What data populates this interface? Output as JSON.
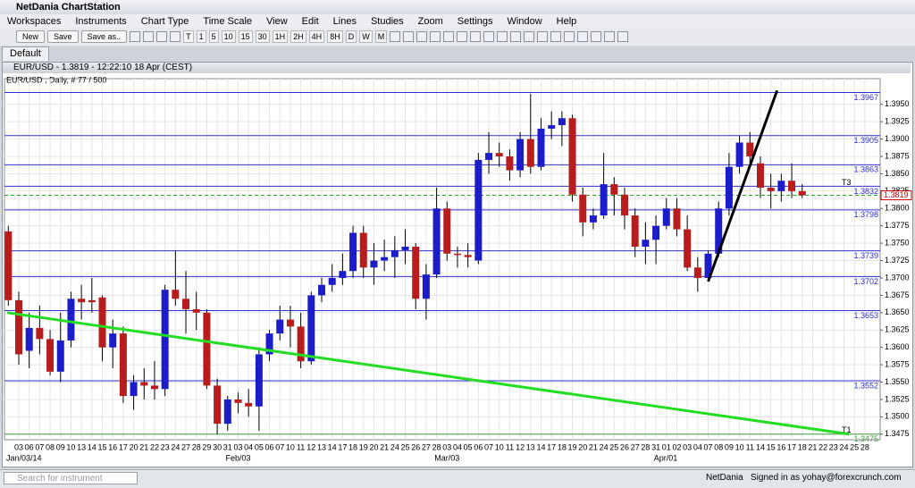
{
  "window": {
    "title": "NetDania ChartStation"
  },
  "menu": [
    "Workspaces",
    "Instruments",
    "Chart Type",
    "Time Scale",
    "View",
    "Edit",
    "Lines",
    "Studies",
    "Zoom",
    "Settings",
    "Window",
    "Help"
  ],
  "toolbar": {
    "buttons": [
      "New",
      "Save",
      "Save as.."
    ],
    "time_scale": [
      "T",
      "1",
      "5",
      "10",
      "15",
      "30",
      "1H",
      "2H",
      "4H",
      "8H",
      "D",
      "W",
      "M"
    ]
  },
  "tabs": [
    "Default"
  ],
  "chart_window": {
    "title": "EUR/USD - 1.3819 - 12:22:10  18 Apr (CEST)"
  },
  "chart_data": {
    "type": "candlestick",
    "legend": "EUR/USD , Daily, # 77 / 500",
    "up_color": "#1c1cc8",
    "down_color": "#b81c1c",
    "candles": [
      [
        1.3767,
        1.3775,
        1.366,
        1.3668
      ],
      [
        1.3668,
        1.368,
        1.3575,
        1.359
      ],
      [
        1.3595,
        1.365,
        1.357,
        1.3628
      ],
      [
        1.3628,
        1.366,
        1.359,
        1.3612
      ],
      [
        1.3612,
        1.3625,
        1.356,
        1.3565
      ],
      [
        1.3565,
        1.365,
        1.355,
        1.361
      ],
      [
        1.361,
        1.368,
        1.36,
        1.367
      ],
      [
        1.367,
        1.369,
        1.364,
        1.3665
      ],
      [
        1.3668,
        1.37,
        1.365,
        1.3665
      ],
      [
        1.3672,
        1.3675,
        1.358,
        1.36
      ],
      [
        1.36,
        1.364,
        1.357,
        1.362
      ],
      [
        1.362,
        1.363,
        1.352,
        1.353
      ],
      [
        1.353,
        1.356,
        1.351,
        1.355
      ],
      [
        1.355,
        1.357,
        1.3525,
        1.3545
      ],
      [
        1.3545,
        1.358,
        1.3525,
        1.354
      ],
      [
        1.354,
        1.369,
        1.353,
        1.3683
      ],
      [
        1.3683,
        1.374,
        1.366,
        1.367
      ],
      [
        1.367,
        1.371,
        1.362,
        1.3655
      ],
      [
        1.3655,
        1.368,
        1.3625,
        1.365
      ],
      [
        1.365,
        1.3655,
        1.354,
        1.3545
      ],
      [
        1.3545,
        1.3555,
        1.3475,
        1.349
      ],
      [
        1.349,
        1.353,
        1.348,
        1.3525
      ],
      [
        1.3525,
        1.3535,
        1.3505,
        1.352
      ],
      [
        1.352,
        1.354,
        1.35,
        1.3515
      ],
      [
        1.3515,
        1.36,
        1.348,
        1.359
      ],
      [
        1.359,
        1.3625,
        1.358,
        1.362
      ],
      [
        1.362,
        1.366,
        1.361,
        1.364
      ],
      [
        1.364,
        1.366,
        1.36,
        1.363
      ],
      [
        1.363,
        1.365,
        1.357,
        1.358
      ],
      [
        1.358,
        1.368,
        1.3575,
        1.3675
      ],
      [
        1.3675,
        1.37,
        1.3665,
        1.369
      ],
      [
        1.369,
        1.372,
        1.368,
        1.37
      ],
      [
        1.37,
        1.3735,
        1.369,
        1.371
      ],
      [
        1.371,
        1.3775,
        1.37,
        1.3765
      ],
      [
        1.3765,
        1.3775,
        1.37,
        1.3715
      ],
      [
        1.3715,
        1.375,
        1.369,
        1.3725
      ],
      [
        1.3725,
        1.3755,
        1.371,
        1.373
      ],
      [
        1.373,
        1.376,
        1.37,
        1.374
      ],
      [
        1.374,
        1.377,
        1.372,
        1.3745
      ],
      [
        1.3745,
        1.375,
        1.3655,
        1.367
      ],
      [
        1.367,
        1.372,
        1.364,
        1.3705
      ],
      [
        1.3705,
        1.383,
        1.37,
        1.38
      ],
      [
        1.38,
        1.381,
        1.3725,
        1.3735
      ],
      [
        1.3735,
        1.3745,
        1.3715,
        1.3733
      ],
      [
        1.3733,
        1.375,
        1.3715,
        1.373
      ],
      [
        1.3725,
        1.388,
        1.372,
        1.387
      ],
      [
        1.387,
        1.391,
        1.385,
        1.388
      ],
      [
        1.388,
        1.3895,
        1.386,
        1.3875
      ],
      [
        1.3875,
        1.3885,
        1.384,
        1.3855
      ],
      [
        1.3855,
        1.391,
        1.3845,
        1.39
      ],
      [
        1.39,
        1.3965,
        1.385,
        1.386
      ],
      [
        1.386,
        1.393,
        1.3855,
        1.3915
      ],
      [
        1.3915,
        1.394,
        1.39,
        1.392
      ],
      [
        1.392,
        1.394,
        1.389,
        1.393
      ],
      [
        1.393,
        1.3935,
        1.381,
        1.382
      ],
      [
        1.382,
        1.383,
        1.376,
        1.378
      ],
      [
        1.378,
        1.38,
        1.377,
        1.379
      ],
      [
        1.379,
        1.388,
        1.3785,
        1.3835
      ],
      [
        1.3835,
        1.3845,
        1.379,
        1.382
      ],
      [
        1.382,
        1.383,
        1.377,
        1.379
      ],
      [
        1.379,
        1.38,
        1.373,
        1.3745
      ],
      [
        1.3745,
        1.378,
        1.372,
        1.3755
      ],
      [
        1.3755,
        1.379,
        1.372,
        1.3775
      ],
      [
        1.3775,
        1.3815,
        1.377,
        1.38
      ],
      [
        1.38,
        1.3815,
        1.376,
        1.377
      ],
      [
        1.377,
        1.379,
        1.371,
        1.3715
      ],
      [
        1.3715,
        1.373,
        1.368,
        1.37
      ],
      [
        1.37,
        1.374,
        1.3695,
        1.3735
      ],
      [
        1.3735,
        1.381,
        1.373,
        1.38
      ],
      [
        1.38,
        1.388,
        1.379,
        1.386
      ],
      [
        1.386,
        1.3905,
        1.385,
        1.3895
      ],
      [
        1.3895,
        1.391,
        1.386,
        1.3875
      ],
      [
        1.3865,
        1.3875,
        1.3815,
        1.383
      ],
      [
        1.383,
        1.385,
        1.38,
        1.3825
      ],
      [
        1.3825,
        1.385,
        1.381,
        1.384
      ],
      [
        1.384,
        1.3865,
        1.3815,
        1.3825
      ],
      [
        1.3825,
        1.3835,
        1.3815,
        1.3819
      ]
    ],
    "categories": [
      "03",
      "06",
      "07",
      "08",
      "09",
      "10",
      "13",
      "14",
      "15",
      "16",
      "17",
      "20",
      "21",
      "22",
      "23",
      "24",
      "27",
      "28",
      "29",
      "30",
      "31",
      "03",
      "04",
      "05",
      "06",
      "07",
      "10",
      "11",
      "12",
      "13",
      "14",
      "17",
      "18",
      "19",
      "20",
      "21",
      "24",
      "25",
      "26",
      "27",
      "28",
      "03",
      "04",
      "05",
      "06",
      "07",
      "10",
      "11",
      "12",
      "13",
      "14",
      "17",
      "18",
      "19",
      "20",
      "21",
      "24",
      "25",
      "26",
      "27",
      "28",
      "31",
      "01",
      "02",
      "03",
      "04",
      "07",
      "08",
      "09",
      "10",
      "11",
      "14",
      "15",
      "16",
      "17",
      "18",
      "21",
      "22",
      "23",
      "24",
      "25",
      "28"
    ],
    "month_labels": [
      {
        "index": 0,
        "label": "Jan/03/14"
      },
      {
        "index": 21,
        "label": "Feb/03"
      },
      {
        "index": 41,
        "label": "Mar/03"
      },
      {
        "index": 62,
        "label": "Apr/01"
      }
    ],
    "ylim": [
      1.3467,
      1.3987
    ],
    "yticks": [
      1.3475,
      {
        "value": 1.35,
        "label": "1.3500"
      },
      1.3525,
      {
        "value": 1.355,
        "label": "1.3550"
      },
      1.3575,
      {
        "value": 1.36,
        "label": "1.3600"
      },
      1.3625,
      {
        "value": 1.365,
        "label": "1.3650"
      },
      1.3675,
      {
        "value": 1.37,
        "label": "1.3700"
      },
      1.3725,
      {
        "value": 1.375,
        "label": "1.3750"
      },
      1.3775,
      {
        "value": 1.38,
        "label": "1.3800"
      },
      1.3825,
      {
        "value": 1.385,
        "label": "1.3850"
      },
      1.3875,
      {
        "value": 1.39,
        "label": "1.3900"
      },
      1.3925,
      {
        "value": 1.395,
        "label": "1.3950"
      }
    ],
    "levels": [
      {
        "value": 1.3967,
        "color": "#3030d0"
      },
      {
        "value": 1.3905,
        "color": "#3030d0"
      },
      {
        "value": 1.3863,
        "color": "#3030d0"
      },
      {
        "value": 1.3832,
        "color": "#3030d0"
      },
      {
        "value": 1.3798,
        "color": "#3030d0"
      },
      {
        "value": 1.3739,
        "color": "#3030d0"
      },
      {
        "value": 1.3702,
        "color": "#3030d0"
      },
      {
        "value": 1.3653,
        "color": "#3030d0"
      },
      {
        "value": 1.3552,
        "color": "#3030d0"
      },
      {
        "value": 1.3475,
        "color": "#40a040"
      }
    ],
    "last_price": 1.3819,
    "markers": [
      {
        "label": "T3",
        "value": 1.3832
      },
      {
        "label": "T1",
        "value": 1.3475
      }
    ],
    "trend_lines": [
      {
        "color": "#22dd22",
        "from": [
          -0.1,
          1.365
        ],
        "to": [
          80.5,
          1.3475
        ]
      },
      {
        "color": "#000000",
        "from": [
          67,
          1.3695
        ],
        "to": [
          73.6,
          1.397
        ]
      }
    ]
  },
  "status": {
    "search_placeholder": "Search for instrument",
    "brand": "NetDania",
    "signed_in": "Signed in as yohay@forexcrunch.com"
  }
}
